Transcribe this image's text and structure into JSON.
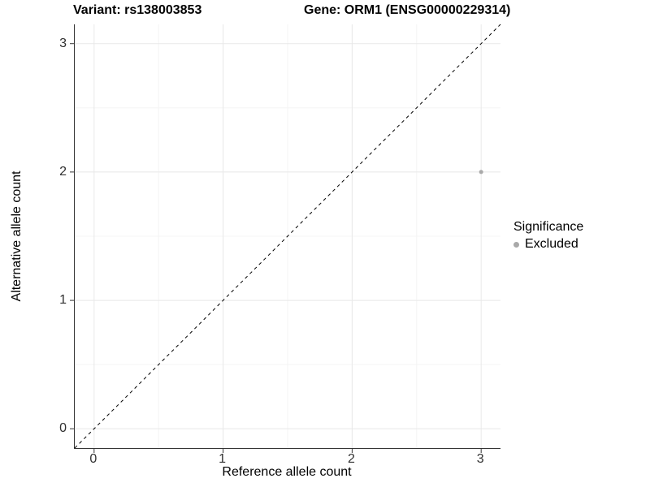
{
  "figure": {
    "title_left": "Variant: rs138003853",
    "title_right": "Gene: ORM1 (ENSG00000229314)",
    "x_axis_label": "Reference allele count",
    "y_axis_label": "Alternative allele count"
  },
  "legend": {
    "title": "Significance",
    "items": [
      {
        "label": "Excluded",
        "color": "#a9a9a9",
        "marker": "circle"
      }
    ]
  },
  "chart_data": {
    "type": "scatter",
    "title": "Variant: rs138003853    Gene: ORM1 (ENSG00000229314)",
    "xlabel": "Reference allele count",
    "ylabel": "Alternative allele count",
    "xlim": [
      -0.15,
      3.15
    ],
    "ylim": [
      -0.15,
      3.15
    ],
    "x_ticks": [
      0,
      1,
      2,
      3
    ],
    "y_ticks": [
      0,
      1,
      2,
      3
    ],
    "x_minor_ticks": [
      0.5,
      1.5,
      2.5
    ],
    "y_minor_ticks": [
      0.5,
      1.5,
      2.5
    ],
    "grid": "major+minor",
    "legend_position": "right",
    "series": [
      {
        "name": "Excluded",
        "color": "#a9a9a9",
        "points": [
          {
            "x": 3,
            "y": 2
          }
        ]
      }
    ],
    "reference_line": {
      "kind": "identity",
      "slope": 1,
      "intercept": 0,
      "linestyle": "dashed",
      "color": "#000000"
    }
  },
  "style": {
    "grid_major_color": "#e8e8e8",
    "grid_minor_color": "#f4f4f4",
    "axis_line_color": "#333333",
    "tick_color": "#333333",
    "tick_label_color": "#303030",
    "point_radius": 2.5
  }
}
